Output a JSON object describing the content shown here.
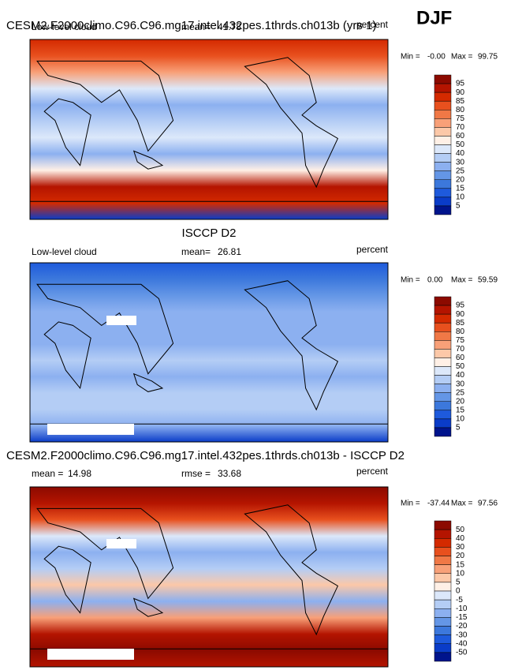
{
  "figure_label": "DJF",
  "panels": [
    {
      "title": "CESM2.F2000climo.C96.C96.mg17.intel.432pes.1thrds.ch013b (yrs 1)",
      "left_text": "Low-level cloud",
      "mid_label": "mean=",
      "mid_value": "41.78",
      "units": "percent",
      "min_label": "Min =",
      "min": "-0.00",
      "max_label": "Max =",
      "max": "99.75",
      "colorbar": {
        "labels": [
          95,
          90,
          85,
          80,
          75,
          70,
          60,
          50,
          40,
          30,
          25,
          20,
          15,
          10,
          5
        ],
        "colors": [
          "#8c0a00",
          "#b41400",
          "#d42a00",
          "#e8501e",
          "#f07846",
          "#f8a078",
          "#fcc8a8",
          "#fff0e6",
          "#dce8fa",
          "#b4cdf5",
          "#8cb0f0",
          "#6496e6",
          "#3c78dc",
          "#1e5adc",
          "#0a3cc8",
          "#00148c"
        ]
      }
    },
    {
      "title": "ISCCP D2",
      "left_text": "Low-level cloud",
      "mid_label": "mean=",
      "mid_value": "26.81",
      "units": "percent",
      "min_label": "Min =",
      "min": "0.00",
      "max_label": "Max =",
      "max": "59.59",
      "colorbar": {
        "labels": [
          95,
          90,
          85,
          80,
          75,
          70,
          60,
          50,
          40,
          30,
          25,
          20,
          15,
          10,
          5
        ],
        "colors": [
          "#8c0a00",
          "#b41400",
          "#d42a00",
          "#e8501e",
          "#f07846",
          "#f8a078",
          "#fcc8a8",
          "#fff0e6",
          "#dce8fa",
          "#b4cdf5",
          "#8cb0f0",
          "#6496e6",
          "#3c78dc",
          "#1e5adc",
          "#0a3cc8",
          "#00148c"
        ]
      }
    },
    {
      "title": "CESM2.F2000climo.C96.C96.mg17.intel.432pes.1thrds.ch013b - ISCCP D2",
      "left_label": "mean =",
      "left_value": "14.98",
      "mid_label": "rmse =",
      "mid_value": "33.68",
      "units": "percent",
      "min_label": "Min =",
      "min": "-37.44",
      "max_label": "Max =",
      "max": "97.56",
      "colorbar": {
        "labels": [
          50,
          40,
          30,
          20,
          15,
          10,
          5,
          0,
          -5,
          -10,
          -15,
          -20,
          -30,
          -40,
          -50
        ],
        "colors": [
          "#8c0a00",
          "#b41400",
          "#d42a00",
          "#e8501e",
          "#f07846",
          "#f8a078",
          "#fcc8a8",
          "#fff0e6",
          "#dce8fa",
          "#b4cdf5",
          "#8cb0f0",
          "#6496e6",
          "#3c78dc",
          "#1e5adc",
          "#0a3cc8",
          "#00148c"
        ]
      }
    }
  ]
}
